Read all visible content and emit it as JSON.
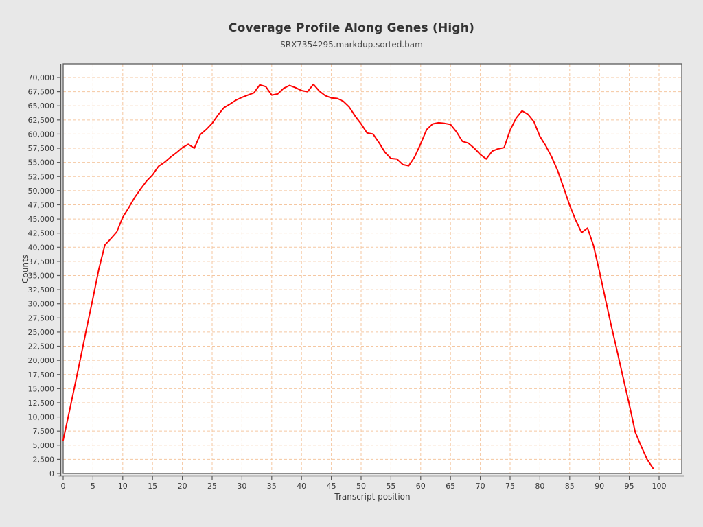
{
  "page": {
    "background_color": "#e8e8e8",
    "plot_background_color": "#ffffff"
  },
  "chart_data": {
    "type": "line",
    "title": "Coverage Profile Along Genes (High)",
    "subtitle": "SRX7354295.markdup.sorted.bam",
    "xlabel": "Transcript position",
    "ylabel": "Counts",
    "xlim": [
      0,
      103.8
    ],
    "ylim": [
      0,
      72400
    ],
    "x_start": 0,
    "x_step": 1,
    "grid": {
      "show": true,
      "color": "#f5c7a1",
      "dash": "4 3"
    },
    "axis": {
      "line_color": "#5a5a5a",
      "tick_color": "#5a5a5a",
      "tick_label_color": "#3a3a3a"
    },
    "legend": "none",
    "x_ticks": {
      "values": [
        0,
        5,
        10,
        15,
        20,
        25,
        30,
        35,
        40,
        45,
        50,
        55,
        60,
        65,
        70,
        75,
        80,
        85,
        90,
        95,
        100
      ],
      "labels": [
        "0",
        "5",
        "10",
        "15",
        "20",
        "25",
        "30",
        "35",
        "40",
        "45",
        "50",
        "55",
        "60",
        "65",
        "70",
        "75",
        "80",
        "85",
        "90",
        "95",
        "100"
      ]
    },
    "y_ticks": {
      "values": [
        0,
        2500,
        5000,
        7500,
        10000,
        12500,
        15000,
        17500,
        20000,
        22500,
        25000,
        27500,
        30000,
        32500,
        35000,
        37500,
        40000,
        42500,
        45000,
        47500,
        50000,
        52500,
        55000,
        57500,
        60000,
        62500,
        65000,
        67500,
        70000
      ],
      "labels": [
        "0",
        "2,500",
        "5,000",
        "7,500",
        "10,000",
        "12,500",
        "15,000",
        "17,500",
        "20,000",
        "22,500",
        "25,000",
        "27,500",
        "30,000",
        "32,500",
        "35,000",
        "37,500",
        "40,000",
        "42,500",
        "45,000",
        "47,500",
        "50,000",
        "52,500",
        "55,000",
        "57,500",
        "60,000",
        "62,500",
        "65,000",
        "67,500",
        "70,000"
      ]
    },
    "series": [
      {
        "name": "coverage",
        "color": "#fe0000",
        "line_width": 2,
        "values": [
          5900,
          10800,
          15800,
          20800,
          26000,
          31000,
          36200,
          40400,
          41500,
          42700,
          45300,
          47000,
          48800,
          50300,
          51700,
          52800,
          54300,
          55000,
          55900,
          56700,
          57600,
          58200,
          57500,
          59900,
          60800,
          61900,
          63400,
          64700,
          65300,
          66000,
          66500,
          66900,
          67300,
          68700,
          68400,
          66900,
          67100,
          68100,
          68600,
          68200,
          67700,
          67500,
          68800,
          67600,
          66800,
          66400,
          66300,
          65800,
          64800,
          63200,
          61800,
          60200,
          60000,
          58500,
          56800,
          55700,
          55600,
          54600,
          54400,
          56000,
          58300,
          60800,
          61800,
          62000,
          61900,
          61700,
          60400,
          58700,
          58400,
          57500,
          56400,
          55600,
          57000,
          57400,
          57600,
          60700,
          62800,
          64100,
          63500,
          62200,
          59600,
          57900,
          55900,
          53500,
          50500,
          47400,
          44800,
          42600,
          43400,
          40300,
          35700,
          30800,
          26000,
          21500,
          16800,
          12200,
          7300,
          4800,
          2500,
          900
        ]
      }
    ]
  }
}
